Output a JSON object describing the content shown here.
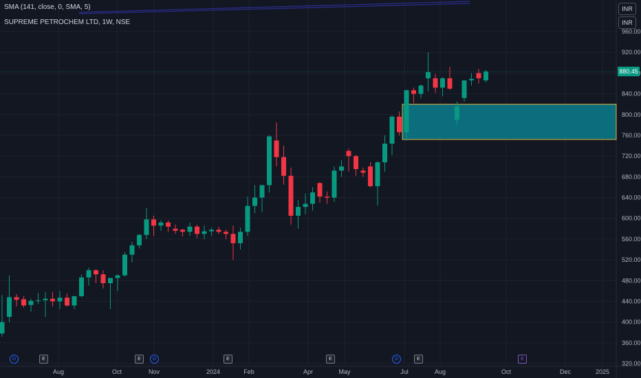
{
  "header": {
    "indicator_label": "SMA (141, close, 0, SMA, 5)",
    "indicator_label_2": "SMA (141, close, 0, SMA, 5)",
    "title": "SUPREME PETROCHEM LTD, 1W, NSE"
  },
  "currency_buttons": [
    "INR",
    "INR"
  ],
  "last_price_label": "880.45",
  "colors": {
    "background": "#131722",
    "up": "#089981",
    "down": "#f23645",
    "grid": "#1e222d",
    "zone_fill": "#0c7e8c",
    "zone_border": "#e0b33a",
    "sma_line": "#2a2e8f"
  },
  "events": [
    {
      "type": "D",
      "x_label": "Jun 2023"
    },
    {
      "type": "E",
      "x_label": "Jul 2023"
    },
    {
      "type": "E",
      "x_label": "Oct 2023"
    },
    {
      "type": "D",
      "x_label": "Nov 2023"
    },
    {
      "type": "E",
      "x_label": "Jan 2024"
    },
    {
      "type": "E",
      "x_label": "Apr 2024"
    },
    {
      "type": "D",
      "x_label": "Jun 2024"
    },
    {
      "type": "E",
      "x_label": "Jul 2024"
    },
    {
      "type": "E",
      "x_label": "Oct 2024"
    }
  ],
  "chart_data": {
    "type": "candlestick",
    "title": "SUPREME PETROCHEM LTD, 1W, NSE",
    "ylim": [
      320,
      960
    ],
    "y_ticks": [
      320,
      360,
      400,
      440,
      480,
      520,
      560,
      600,
      640,
      680,
      720,
      760,
      800,
      840,
      880,
      920,
      960
    ],
    "y_tick_labels": [
      "320.00",
      "360.00",
      "400.00",
      "440.00",
      "480.00",
      "520.00",
      "560.00",
      "600.00",
      "640.00",
      "680.00",
      "720.00",
      "760.00",
      "800.00",
      "840.00",
      "880.00",
      "920.00",
      "960.00"
    ],
    "x_tick_labels": [
      "Aug",
      "Oct",
      "Nov",
      "2024",
      "Feb",
      "Apr",
      "May",
      "Jul",
      "Aug",
      "Oct",
      "Dec",
      "2025"
    ],
    "grid": true,
    "candles": [
      [
        378,
        452,
        372,
        400
      ],
      [
        410,
        490,
        400,
        448
      ],
      [
        448,
        454,
        430,
        443
      ],
      [
        444,
        450,
        428,
        432
      ],
      [
        433,
        445,
        420,
        441
      ],
      [
        441,
        456,
        435,
        442
      ],
      [
        442,
        458,
        410,
        445
      ],
      [
        445,
        458,
        430,
        440
      ],
      [
        440,
        460,
        425,
        447
      ],
      [
        447,
        455,
        430,
        432
      ],
      [
        432,
        450,
        425,
        450
      ],
      [
        450,
        492,
        448,
        486
      ],
      [
        486,
        505,
        470,
        500
      ],
      [
        500,
        502,
        475,
        492
      ],
      [
        492,
        500,
        465,
        475
      ],
      [
        475,
        484,
        425,
        485
      ],
      [
        485,
        492,
        460,
        490
      ],
      [
        490,
        535,
        488,
        530
      ],
      [
        530,
        555,
        515,
        548
      ],
      [
        548,
        570,
        542,
        568
      ],
      [
        568,
        620,
        560,
        598
      ],
      [
        598,
        605,
        566,
        586
      ],
      [
        586,
        596,
        576,
        592
      ],
      [
        592,
        596,
        574,
        584
      ],
      [
        580,
        588,
        570,
        576
      ],
      [
        578,
        580,
        565,
        574
      ],
      [
        574,
        592,
        566,
        584
      ],
      [
        584,
        588,
        562,
        570
      ],
      [
        570,
        586,
        560,
        575
      ],
      [
        575,
        582,
        566,
        578
      ],
      [
        578,
        584,
        570,
        574
      ],
      [
        574,
        578,
        560,
        570
      ],
      [
        570,
        586,
        520,
        552
      ],
      [
        552,
        582,
        540,
        574
      ],
      [
        574,
        642,
        566,
        624
      ],
      [
        624,
        664,
        610,
        640
      ],
      [
        640,
        658,
        612,
        664
      ],
      [
        664,
        760,
        650,
        758
      ],
      [
        750,
        785,
        700,
        718
      ],
      [
        718,
        740,
        665,
        682
      ],
      [
        682,
        698,
        588,
        605
      ],
      [
        605,
        635,
        580,
        622
      ],
      [
        622,
        648,
        608,
        628
      ],
      [
        628,
        660,
        615,
        650
      ],
      [
        668,
        670,
        630,
        642
      ],
      [
        642,
        652,
        628,
        640
      ],
      [
        640,
        700,
        632,
        692
      ],
      [
        692,
        712,
        680,
        700
      ],
      [
        730,
        734,
        690,
        720
      ],
      [
        720,
        722,
        682,
        695
      ],
      [
        692,
        698,
        680,
        688
      ],
      [
        700,
        708,
        660,
        662
      ],
      [
        662,
        710,
        625,
        708
      ],
      [
        708,
        760,
        690,
        744
      ],
      [
        744,
        798,
        722,
        796
      ],
      [
        796,
        806,
        760,
        766
      ],
      [
        766,
        848,
        750,
        847
      ],
      [
        847,
        852,
        822,
        840
      ],
      [
        840,
        858,
        832,
        856
      ],
      [
        870,
        920,
        845,
        882
      ],
      [
        870,
        878,
        842,
        852
      ],
      [
        852,
        872,
        835,
        870
      ],
      [
        870,
        892,
        848,
        850
      ],
      [
        790,
        825,
        780,
        816
      ],
      [
        832,
        866,
        825,
        866
      ],
      [
        866,
        880,
        856,
        869
      ],
      [
        880,
        888,
        860,
        870
      ],
      [
        866,
        886,
        862,
        883
      ]
    ],
    "candle_start_week": 0,
    "total_weeks_visible": 95,
    "zone": {
      "price_top": 820,
      "price_bottom": 752,
      "from_week": 56
    },
    "sma_series": {
      "name": "SMA (141, close, 0, SMA, 5)"
    }
  }
}
